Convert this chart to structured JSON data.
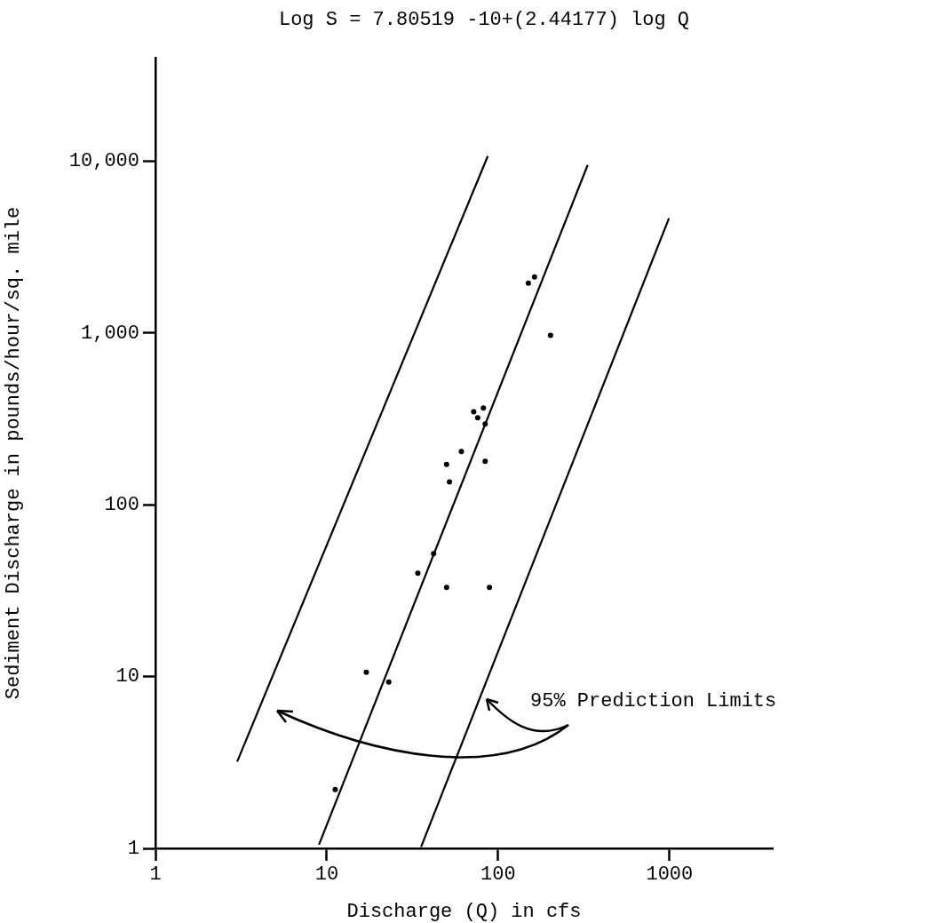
{
  "chart_data": {
    "type": "scatter",
    "title": "Log S = 7.80519 -10+(2.44177) log Q",
    "xlabel": "Discharge (Q) in cfs",
    "ylabel": "Sediment Discharge in pounds/hour/sq. mile",
    "annotations": [
      "95% Prediction Limits"
    ],
    "log": "xy",
    "grid": false,
    "legend": false,
    "xlim": [
      1,
      4000
    ],
    "xticks": [
      1,
      10,
      100,
      1000
    ],
    "ylim": [
      1,
      40000
    ],
    "yticks": [
      1,
      10,
      100,
      {
        "value": 1000,
        "label": "1,000"
      },
      {
        "value": 10000,
        "label": "10,000"
      }
    ],
    "series": [
      {
        "type": "scatter",
        "marker": "circle",
        "color": "#000000",
        "x": [
          163,
          150,
          202,
          82,
          72,
          76,
          84,
          61,
          50,
          84,
          52,
          42,
          34,
          50,
          89,
          17,
          23,
          11.2
        ],
        "values": [
          2120,
          1950,
          970,
          366,
          348,
          321,
          295,
          204,
          172,
          179,
          136,
          52,
          40,
          33,
          33,
          10.6,
          9.3,
          2.2
        ]
      },
      {
        "type": "line",
        "marker": "none",
        "color": "#000000",
        "line_style": "solid",
        "x": [
          9.0,
          333
        ],
        "values": [
          1.05,
          9500
        ]
      },
      {
        "type": "line",
        "marker": "none",
        "color": "#000000",
        "line_style": "solid",
        "x": [
          3.0,
          87
        ],
        "values": [
          3.2,
          10700
        ]
      },
      {
        "type": "line",
        "marker": "none",
        "color": "#000000",
        "line_style": "solid",
        "x": [
          35.5,
          993
        ],
        "values": [
          1.02,
          4660
        ]
      }
    ]
  }
}
